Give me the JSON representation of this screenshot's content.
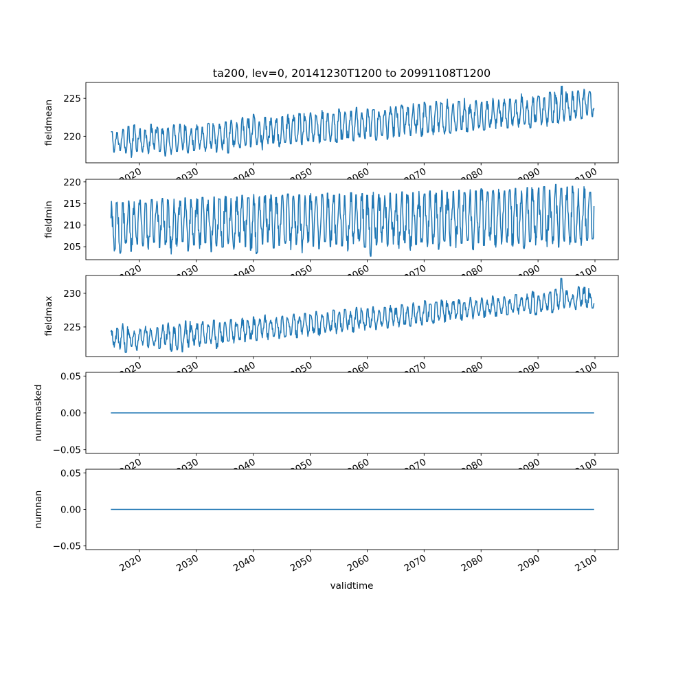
{
  "chart_data": {
    "type": "line",
    "title": "ta200, lev=0, 20141230T1200 to 20991108T1200",
    "xlabel": "validtime",
    "x_ticks": [
      2020,
      2030,
      2040,
      2050,
      2060,
      2070,
      2080,
      2090,
      2100
    ],
    "x_tick_labels": [
      "2020",
      "2030",
      "2040",
      "2050",
      "2060",
      "2070",
      "2080",
      "2090",
      "2100"
    ],
    "xlim": [
      2010.6,
      2104.1
    ],
    "time_range": [
      2014.99,
      2099.85
    ],
    "line_color": "#1f77b4",
    "panels": [
      {
        "ylabel": "fieldmean",
        "ylim": [
          216.5,
          227.1
        ],
        "y_ticks": [
          220,
          225
        ],
        "y_tick_labels": [
          "220",
          "225"
        ],
        "start_year": 2015,
        "annual_high": [
          220.6,
          220.5,
          220.9,
          221.3,
          221.5,
          221.0,
          220.8,
          221.6,
          221.2,
          221.0,
          221.1,
          221.5,
          221.6,
          221.3,
          221.0,
          221.5,
          221.2,
          221.7,
          221.4,
          221.6,
          221.9,
          222.1,
          221.8,
          222.5,
          222.3,
          222.9,
          221.9,
          222.5,
          222.4,
          222.3,
          222.6,
          222.9,
          222.8,
          223.0,
          222.6,
          223.1,
          222.7,
          223.4,
          223.0,
          222.9,
          223.6,
          223.2,
          223.3,
          223.8,
          223.1,
          223.6,
          223.5,
          223.2,
          223.4,
          223.9,
          223.9,
          224.1,
          223.8,
          224.3,
          224.2,
          224.5,
          224.0,
          224.6,
          224.3,
          224.9,
          224.3,
          224.6,
          225.0,
          224.2,
          224.7,
          224.5,
          224.6,
          225.0,
          224.8,
          224.9,
          224.9,
          224.8,
          225.6,
          224.7,
          225.2,
          225.3,
          225.1,
          225.8,
          225.4,
          226.6,
          225.6,
          225.9,
          226.0,
          226.2,
          225.9
        ],
        "annual_low": [
          217.9,
          218.1,
          217.8,
          217.2,
          218.0,
          217.9,
          217.7,
          218.3,
          218.0,
          217.4,
          217.6,
          218.0,
          218.2,
          217.8,
          218.1,
          218.3,
          218.0,
          218.4,
          217.9,
          218.2,
          217.8,
          218.6,
          218.5,
          218.8,
          218.6,
          218.9,
          218.2,
          219.0,
          219.1,
          218.6,
          219.2,
          219.0,
          219.3,
          218.9,
          219.4,
          219.3,
          219.1,
          219.5,
          219.3,
          219.2,
          219.6,
          219.8,
          219.4,
          219.9,
          219.7,
          220.0,
          219.5,
          220.1,
          219.6,
          219.9,
          220.0,
          220.3,
          220.1,
          220.4,
          220.0,
          220.5,
          220.2,
          220.6,
          220.3,
          220.4,
          220.7,
          220.9,
          220.6,
          220.8,
          221.1,
          220.8,
          221.2,
          221.0,
          221.3,
          221.1,
          221.4,
          221.2,
          221.6,
          221.1,
          221.9,
          221.5,
          221.3,
          221.8,
          221.7,
          222.0,
          222.1,
          222.4,
          222.3,
          222.8,
          222.6
        ]
      },
      {
        "ylabel": "fieldmin",
        "ylim": [
          202.0,
          220.6
        ],
        "y_ticks": [
          205,
          210,
          215,
          220
        ],
        "y_tick_labels": [
          "205",
          "210",
          "215",
          "220"
        ],
        "start_year": 2015,
        "annual_high": [
          215.5,
          215.3,
          215.2,
          215.6,
          215.4,
          215.8,
          215.1,
          215.9,
          215.5,
          216.2,
          215.8,
          216.0,
          215.6,
          216.3,
          215.9,
          216.1,
          216.4,
          215.8,
          216.5,
          216.0,
          216.7,
          216.2,
          216.5,
          216.9,
          216.3,
          217.1,
          216.6,
          216.8,
          217.0,
          216.4,
          216.9,
          217.2,
          216.7,
          217.0,
          216.8,
          217.3,
          216.6,
          217.1,
          217.4,
          216.9,
          217.2,
          216.8,
          217.5,
          217.0,
          217.3,
          216.9,
          217.6,
          217.1,
          216.8,
          217.4,
          217.2,
          217.7,
          216.9,
          217.5,
          217.8,
          217.2,
          217.9,
          217.4,
          218.0,
          217.6,
          217.8,
          218.1,
          217.5,
          218.2,
          217.9,
          218.4,
          217.7,
          218.0,
          218.3,
          217.9,
          218.2,
          218.5,
          217.9,
          218.7,
          218.3,
          218.6,
          218.9,
          218.1,
          219.4,
          218.5,
          218.8,
          219.0,
          218.4,
          218.9,
          217.6
        ],
        "annual_low": [
          204.0,
          203.5,
          205.8,
          203.9,
          205.6,
          205.2,
          204.4,
          206.0,
          204.8,
          205.5,
          203.3,
          205.1,
          206.2,
          204.0,
          205.4,
          204.6,
          205.9,
          203.8,
          205.2,
          204.9,
          205.7,
          204.4,
          206.0,
          205.0,
          204.2,
          203.4,
          205.6,
          206.1,
          204.7,
          205.3,
          205.8,
          204.3,
          205.5,
          203.6,
          205.9,
          205.1,
          204.5,
          206.2,
          205.0,
          205.6,
          205.2,
          204.0,
          205.7,
          206.3,
          204.9,
          202.8,
          205.4,
          206.0,
          205.1,
          205.6,
          204.6,
          205.9,
          204.2,
          205.5,
          206.1,
          205.0,
          205.7,
          204.4,
          206.3,
          205.2,
          204.8,
          205.8,
          206.4,
          204.3,
          205.9,
          205.3,
          206.5,
          204.9,
          205.6,
          206.0,
          205.1,
          205.8,
          204.6,
          206.2,
          205.4,
          206.6,
          205.0,
          205.7,
          204.9,
          206.3,
          205.5,
          206.0,
          205.3,
          206.4,
          206.8
        ]
      },
      {
        "ylabel": "fieldmax",
        "ylim": [
          220.6,
          232.65
        ],
        "y_ticks": [
          225,
          230
        ],
        "y_tick_labels": [
          "225",
          "230"
        ],
        "start_year": 2015,
        "annual_high": [
          224.5,
          224.8,
          225.5,
          224.6,
          224.4,
          224.7,
          225.1,
          224.5,
          224.9,
          225.3,
          225.6,
          225.0,
          225.4,
          225.9,
          225.2,
          225.5,
          225.8,
          225.3,
          226.0,
          225.6,
          225.7,
          226.1,
          225.4,
          226.3,
          225.9,
          226.5,
          226.2,
          226.8,
          226.0,
          226.4,
          226.6,
          226.2,
          226.9,
          226.5,
          227.0,
          226.7,
          227.3,
          226.8,
          227.1,
          227.5,
          227.2,
          227.6,
          227.3,
          227.9,
          227.4,
          227.7,
          228.0,
          227.5,
          227.9,
          228.2,
          227.8,
          228.3,
          228.0,
          228.6,
          228.1,
          228.9,
          228.4,
          228.7,
          229.0,
          228.5,
          228.8,
          229.1,
          228.6,
          229.4,
          228.9,
          229.3,
          229.0,
          229.6,
          229.2,
          229.5,
          229.1,
          229.8,
          229.4,
          229.9,
          230.3,
          229.6,
          230.0,
          230.2,
          230.6,
          232.2,
          230.4,
          229.8,
          231.0,
          230.9,
          230.0
        ],
        "annual_low": [
          222.0,
          221.7,
          221.2,
          222.1,
          221.5,
          222.3,
          221.9,
          222.2,
          221.8,
          222.4,
          221.4,
          221.6,
          221.3,
          222.0,
          222.3,
          222.1,
          222.6,
          222.5,
          221.8,
          222.7,
          222.9,
          222.6,
          223.1,
          222.8,
          223.2,
          223.0,
          223.4,
          223.1,
          223.6,
          223.3,
          223.5,
          223.8,
          223.4,
          223.9,
          223.6,
          224.1,
          223.7,
          224.2,
          224.4,
          224.0,
          224.3,
          224.6,
          224.2,
          224.8,
          224.5,
          224.9,
          224.6,
          225.1,
          224.8,
          225.2,
          225.0,
          225.4,
          225.1,
          225.6,
          225.3,
          225.8,
          225.5,
          226.0,
          225.7,
          226.1,
          226.3,
          226.0,
          226.5,
          226.2,
          226.7,
          226.4,
          226.9,
          226.6,
          227.0,
          226.8,
          227.2,
          226.9,
          227.4,
          227.0,
          226.8,
          227.3,
          227.5,
          227.1,
          227.6,
          227.8,
          227.9,
          227.6,
          228.1,
          227.9,
          227.8
        ]
      },
      {
        "ylabel": "nummasked",
        "ylim": [
          -0.055,
          0.055
        ],
        "y_ticks": [
          -0.05,
          0.0,
          0.05
        ],
        "y_tick_labels": [
          "−0.05",
          "0.00",
          "0.05"
        ],
        "constant_value": 0
      },
      {
        "ylabel": "numnan",
        "ylim": [
          -0.055,
          0.055
        ],
        "y_ticks": [
          -0.05,
          0.0,
          0.05
        ],
        "y_tick_labels": [
          "−0.05",
          "0.00",
          "0.05"
        ],
        "constant_value": 0
      }
    ]
  }
}
